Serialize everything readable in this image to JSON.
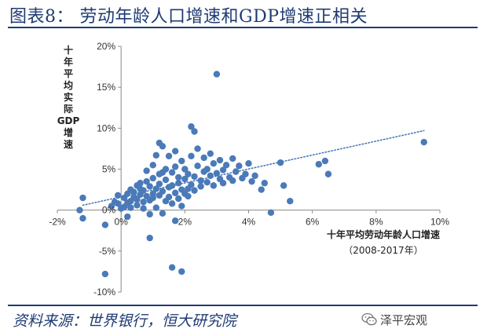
{
  "title": "图表8：  劳动年龄人口增速和GDP增速正相关",
  "source": "资料来源：世界银行，恒大研究院",
  "watermark": "泽平宏观",
  "colors": {
    "title": "#1f3b73",
    "dots": "#4a7ab8",
    "trend": "#4a7ab8",
    "axis": "#888888"
  },
  "chart_data": {
    "type": "scatter",
    "title": "劳动年龄人口增速和GDP增速正相关",
    "xlabel_lines": [
      "十年平均劳动年龄人口增速",
      "（2008-2017年）"
    ],
    "ylabel_lines": [
      "十",
      "年",
      "平",
      "均",
      "实",
      "际",
      "GDP",
      "增",
      "速"
    ],
    "xlim": [
      -2,
      10
    ],
    "ylim": [
      -10,
      20
    ],
    "x_ticks": [
      -2,
      0,
      2,
      4,
      6,
      8,
      10
    ],
    "y_ticks": [
      -10,
      -5,
      0,
      5,
      10,
      15,
      20
    ],
    "x_tick_labels": [
      "-2%",
      "0%",
      "2%",
      "4%",
      "6%",
      "8%",
      "10%"
    ],
    "y_tick_labels": [
      "-10%",
      "-5%",
      "0%",
      "5%",
      "10%",
      "15%",
      "20%"
    ],
    "grid": false,
    "trendline": {
      "style": "dotted",
      "from": [
        -1.2,
        0.6
      ],
      "to": [
        9.5,
        9.7
      ]
    },
    "points": [
      [
        -1.2,
        1.5
      ],
      [
        -1.2,
        -1.0
      ],
      [
        -1.3,
        0.0
      ],
      [
        -0.5,
        -7.8
      ],
      [
        -0.5,
        -1.8
      ],
      [
        -0.3,
        0.5
      ],
      [
        -0.2,
        1.0
      ],
      [
        -0.1,
        1.8
      ],
      [
        -0.1,
        0.8
      ],
      [
        0.0,
        0.2
      ],
      [
        0.1,
        0.4
      ],
      [
        0.1,
        1.5
      ],
      [
        0.2,
        2.0
      ],
      [
        0.2,
        0.9
      ],
      [
        0.3,
        2.5
      ],
      [
        0.3,
        1.1
      ],
      [
        0.3,
        0.3
      ],
      [
        0.4,
        1.6
      ],
      [
        0.4,
        2.2
      ],
      [
        0.5,
        3.0
      ],
      [
        0.5,
        1.3
      ],
      [
        0.5,
        0.6
      ],
      [
        0.6,
        2.6
      ],
      [
        0.6,
        1.9
      ],
      [
        0.7,
        1.0
      ],
      [
        0.7,
        2.4
      ],
      [
        0.7,
        0.2
      ],
      [
        0.8,
        3.5
      ],
      [
        0.8,
        1.7
      ],
      [
        0.8,
        4.8
      ],
      [
        0.9,
        2.9
      ],
      [
        0.9,
        1.2
      ],
      [
        0.9,
        -0.5
      ],
      [
        1.0,
        2.0
      ],
      [
        1.0,
        3.9
      ],
      [
        1.0,
        5.5
      ],
      [
        1.0,
        1.5
      ],
      [
        1.1,
        0.3
      ],
      [
        1.1,
        2.6
      ],
      [
        1.1,
        6.7
      ],
      [
        1.2,
        3.2
      ],
      [
        1.2,
        1.8
      ],
      [
        1.2,
        4.4
      ],
      [
        1.2,
        8.2
      ],
      [
        1.3,
        7.8
      ],
      [
        1.3,
        2.3
      ],
      [
        1.3,
        -0.4
      ],
      [
        1.4,
        5.0
      ],
      [
        1.4,
        1.1
      ],
      [
        1.4,
        3.7
      ],
      [
        1.5,
        6.6
      ],
      [
        1.5,
        2.8
      ],
      [
        1.5,
        1.6
      ],
      [
        1.6,
        4.6
      ],
      [
        1.6,
        0.8
      ],
      [
        1.6,
        3.0
      ],
      [
        1.7,
        2.1
      ],
      [
        1.7,
        5.3
      ],
      [
        1.7,
        7.2
      ],
      [
        1.8,
        1.4
      ],
      [
        1.8,
        3.3
      ],
      [
        1.8,
        4.0
      ],
      [
        1.9,
        2.5
      ],
      [
        1.9,
        6.0
      ],
      [
        1.9,
        0.5
      ],
      [
        2.0,
        3.8
      ],
      [
        2.0,
        2.0
      ],
      [
        2.0,
        5.0
      ],
      [
        2.1,
        4.4
      ],
      [
        2.1,
        1.7
      ],
      [
        2.2,
        3.1
      ],
      [
        2.2,
        6.6
      ],
      [
        2.2,
        10.2
      ],
      [
        2.3,
        9.6
      ],
      [
        2.3,
        4.1
      ],
      [
        2.3,
        2.4
      ],
      [
        2.4,
        5.4
      ],
      [
        2.4,
        7.5
      ],
      [
        2.5,
        3.6
      ],
      [
        2.5,
        2.9
      ],
      [
        2.6,
        4.7
      ],
      [
        2.6,
        6.4
      ],
      [
        2.7,
        3.4
      ],
      [
        2.7,
        5.0
      ],
      [
        2.8,
        4.2
      ],
      [
        2.8,
        6.9
      ],
      [
        2.9,
        3.0
      ],
      [
        2.9,
        5.7
      ],
      [
        3.0,
        16.6
      ],
      [
        3.0,
        4.5
      ],
      [
        3.1,
        3.8
      ],
      [
        3.1,
        6.1
      ],
      [
        3.2,
        4.9
      ],
      [
        3.2,
        3.3
      ],
      [
        3.3,
        5.5
      ],
      [
        3.4,
        4.0
      ],
      [
        3.5,
        6.3
      ],
      [
        3.5,
        3.6
      ],
      [
        3.6,
        4.7
      ],
      [
        3.7,
        5.4
      ],
      [
        3.8,
        3.9
      ],
      [
        3.9,
        4.4
      ],
      [
        4.0,
        5.7
      ],
      [
        4.1,
        3.5
      ],
      [
        4.2,
        4.2
      ],
      [
        4.4,
        2.5
      ],
      [
        4.5,
        3.3
      ],
      [
        4.7,
        -0.3
      ],
      [
        5.0,
        5.8
      ],
      [
        5.1,
        3.0
      ],
      [
        5.3,
        1.1
      ],
      [
        6.2,
        5.6
      ],
      [
        6.4,
        6.0
      ],
      [
        6.5,
        4.4
      ],
      [
        9.5,
        8.3
      ],
      [
        0.9,
        -3.4
      ],
      [
        1.7,
        -1.3
      ],
      [
        2.1,
        2.6
      ],
      [
        1.6,
        -7.0
      ],
      [
        1.9,
        -7.5
      ],
      [
        0.2,
        -0.8
      ],
      [
        0.6,
        3.3
      ],
      [
        1.3,
        4.6
      ]
    ]
  }
}
